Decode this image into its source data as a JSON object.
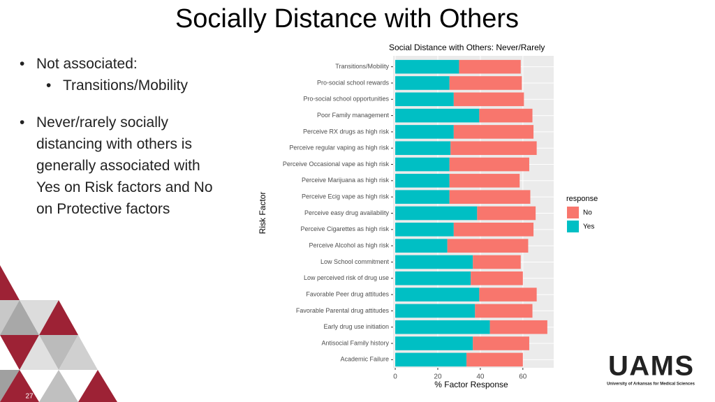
{
  "slide": {
    "title": "Socially Distance with Others",
    "bullets": [
      {
        "text": "Not associated:",
        "level": 1
      },
      {
        "text": "Transitions/Mobility",
        "level": 2
      },
      {
        "text": "Never/rarely socially distancing with others is generally associated with Yes on Risk factors and No on Protective factors",
        "level": 1
      }
    ],
    "page_number": "27",
    "logo": {
      "name": "UAMS",
      "subtitle": "University of Arkansas for Medical Sciences"
    }
  },
  "chart_data": {
    "type": "stacked-bar-horizontal",
    "title": "Social Distance with Others: Never/Rarely",
    "x_label": "% Factor Response",
    "y_label": "Risk Factor",
    "legend_title": "response",
    "categories": [
      "Transitions/Mobility",
      "Pro-social school rewards",
      "Pro-social school opportunities",
      "Poor Family management",
      "Perceive RX drugs as high risk",
      "Perceive regular vaping as high risk",
      "Perceive Occasional vape as high risk",
      "Perceive Marijuana as high risk",
      "Perceive Ecig vape as high risk",
      "Perceive easy drug availability",
      "Perceive Cigarettes as high risk",
      "Perceive Alcohol as high risk",
      "Low School commitment",
      "Low perceived risk of drug use",
      "Favorable Peer drug attitudes",
      "Favorable Parental drug attitudes",
      "Early drug use initiation",
      "Antisocial Family history",
      "Academic Failure"
    ],
    "series": [
      {
        "name": "No",
        "color": "#f8766d",
        "values": [
          29,
          34,
          33,
          25,
          37.5,
          40.5,
          37.5,
          33,
          38,
          27.5,
          37.5,
          38,
          22.5,
          24.5,
          27,
          27,
          27,
          26.5,
          26.5
        ]
      },
      {
        "name": "Yes",
        "color": "#00bfc4",
        "values": [
          30,
          25.5,
          27.5,
          39.5,
          27.5,
          26,
          25.5,
          25.5,
          25.5,
          38.5,
          27.5,
          24.5,
          36.5,
          35.5,
          39.5,
          37.5,
          44.5,
          36.5,
          33.5
        ]
      }
    ],
    "xlim": [
      -1,
      74.5
    ],
    "xticks": [
      0,
      20,
      40,
      60
    ],
    "grid": true,
    "legend": "right"
  }
}
